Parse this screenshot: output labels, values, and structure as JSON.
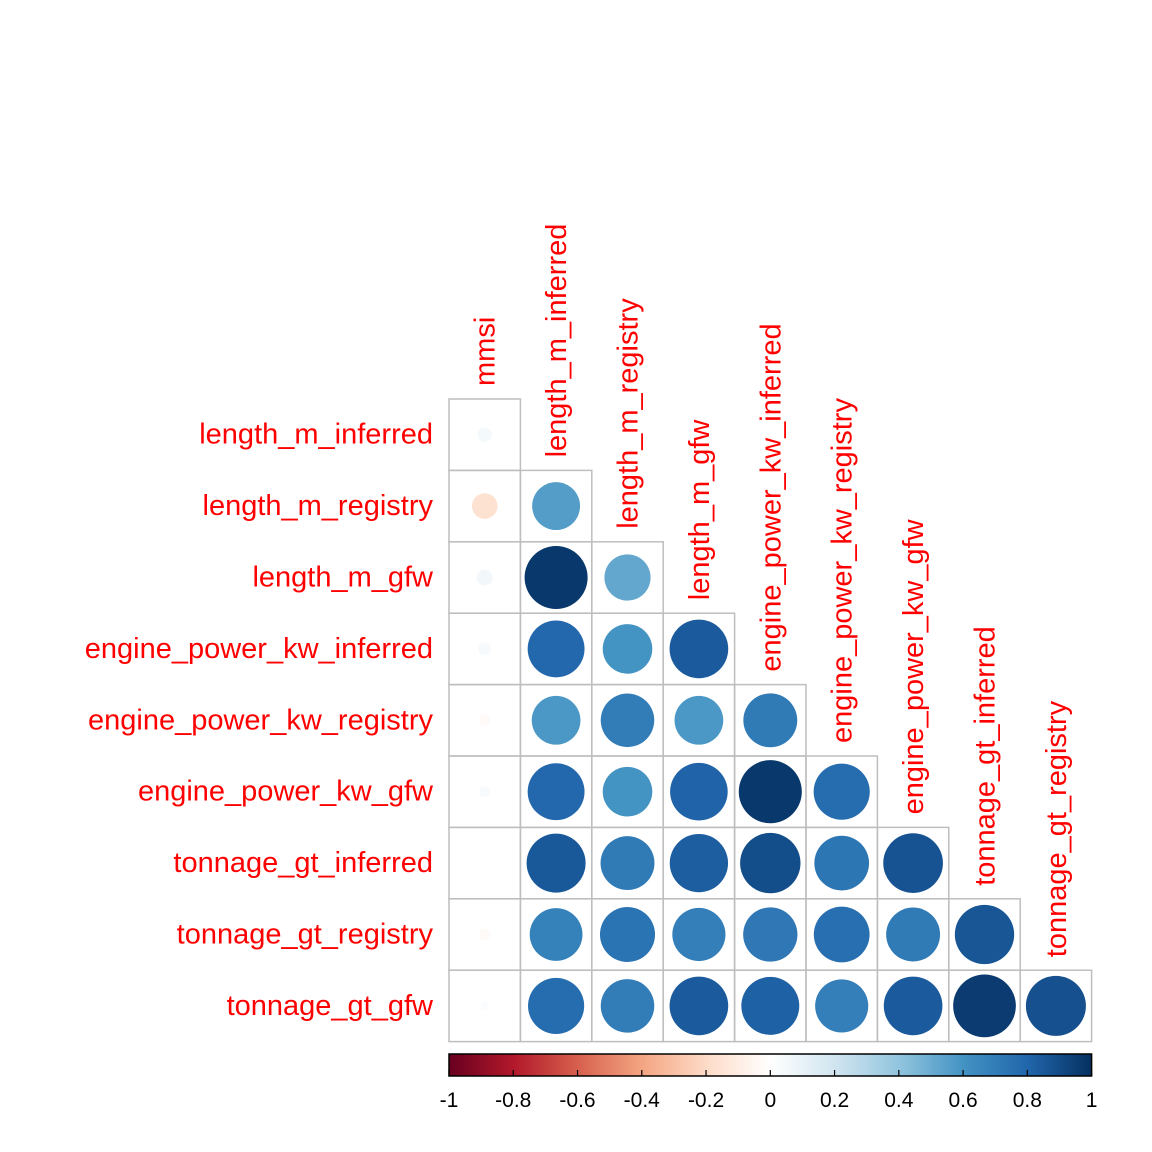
{
  "chart_data": {
    "type": "heatmap",
    "style": "corrplot circles, lower triangle, diagonal omitted",
    "title": "",
    "column_labels": [
      "mmsi",
      "length_m_inferred",
      "length_m_registry",
      "length_m_gfw",
      "engine_power_kw_inferred",
      "engine_power_kw_registry",
      "engine_power_kw_gfw",
      "tonnage_gt_inferred",
      "tonnage_gt_registry"
    ],
    "row_labels": [
      "length_m_inferred",
      "length_m_registry",
      "length_m_gfw",
      "engine_power_kw_inferred",
      "engine_power_kw_registry",
      "engine_power_kw_gfw",
      "tonnage_gt_inferred",
      "tonnage_gt_registry",
      "tonnage_gt_gfw"
    ],
    "correlations": [
      [
        0.05
      ],
      [
        -0.16,
        0.56
      ],
      [
        0.06,
        0.97,
        0.52
      ],
      [
        0.04,
        0.79,
        0.6,
        0.84
      ],
      [
        -0.03,
        0.58,
        0.7,
        0.58,
        0.71
      ],
      [
        0.03,
        0.79,
        0.6,
        0.81,
        0.97,
        0.77
      ],
      [
        0.01,
        0.85,
        0.71,
        0.83,
        0.89,
        0.73,
        0.87
      ],
      [
        -0.03,
        0.68,
        0.74,
        0.69,
        0.72,
        0.76,
        0.71,
        0.86
      ],
      [
        0.02,
        0.77,
        0.7,
        0.84,
        0.82,
        0.69,
        0.84,
        0.96,
        0.88
      ]
    ],
    "colorbar": {
      "range": [
        -1,
        1
      ],
      "ticks": [
        "-1",
        "-0.8",
        "-0.6",
        "-0.4",
        "-0.2",
        "0",
        "0.2",
        "0.4",
        "0.6",
        "0.8",
        "1"
      ],
      "colors": [
        "#67001f",
        "#b2182b",
        "#d6604d",
        "#f4a582",
        "#fddbc7",
        "#ffffff",
        "#d1e5f0",
        "#92c5de",
        "#4393c3",
        "#2166ac",
        "#053061"
      ]
    },
    "label_color": "#ff0000",
    "grid_color": "#bebebe"
  }
}
